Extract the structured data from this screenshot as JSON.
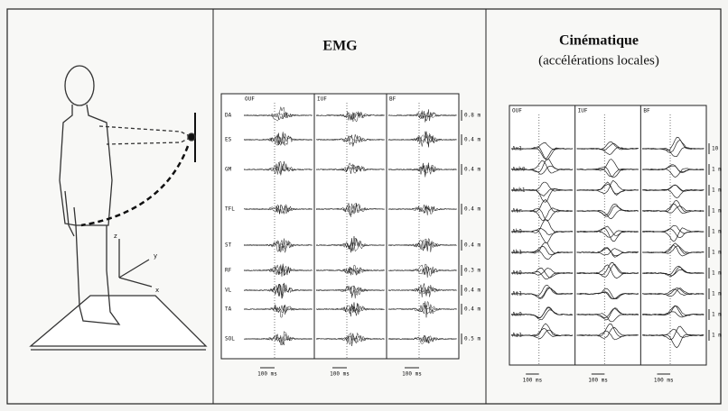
{
  "figure": {
    "axes": [
      "z",
      "y",
      "x"
    ]
  },
  "emg": {
    "title": "EMG",
    "columns": [
      "OUF",
      "IUF",
      "BF"
    ],
    "rows": [
      {
        "label": "DA",
        "scale": "0.8 m"
      },
      {
        "label": "ES",
        "scale": "0.4 m"
      },
      {
        "label": "GM",
        "scale": "0.4 m"
      },
      {
        "label": "TFL",
        "scale": "0.4 m"
      },
      {
        "label": "ST",
        "scale": "0.4 m"
      },
      {
        "label": "RF",
        "scale": "0.3 m"
      },
      {
        "label": "VL",
        "scale": "0.4 m"
      },
      {
        "label": "TA",
        "scale": "0.4 m"
      },
      {
        "label": "SOL",
        "scale": "0.5 m"
      }
    ],
    "time_scale": "100 ms"
  },
  "kinematics": {
    "title": "Cinématique",
    "subtitle": "(accélérations locales)",
    "columns": [
      "OUF",
      "IUF",
      "BF"
    ],
    "rows": [
      {
        "label": "Ax1",
        "scale": "10"
      },
      {
        "label": "Axh0",
        "scale": "1 m"
      },
      {
        "label": "Axh1",
        "scale": "1 m"
      },
      {
        "label": "Atr",
        "scale": "1 m"
      },
      {
        "label": "Ah0",
        "scale": "1 m"
      },
      {
        "label": "Ah1",
        "scale": "1 m"
      },
      {
        "label": "At0",
        "scale": "1 m"
      },
      {
        "label": "At1",
        "scale": "1 m"
      },
      {
        "label": "Ax0",
        "scale": "1 m"
      },
      {
        "label": "Az1",
        "scale": "1 m"
      }
    ],
    "time_scale": "100 ms"
  }
}
